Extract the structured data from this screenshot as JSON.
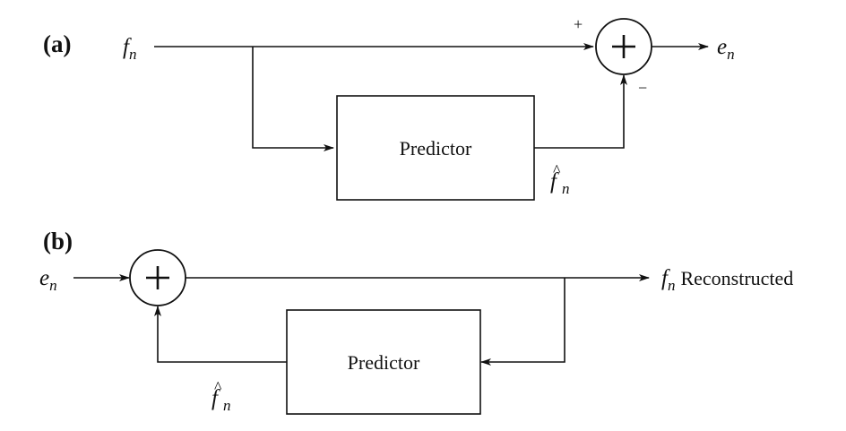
{
  "diagram_a": {
    "panel_label": "(a)",
    "input": {
      "symbol": "f",
      "subscript": "n"
    },
    "output": {
      "symbol": "e",
      "subscript": "n"
    },
    "predictor_label": "Predictor",
    "prediction": {
      "symbol": "f",
      "accent": "^",
      "subscript": "n"
    },
    "summer_symbol": "+",
    "sign_top": "+",
    "sign_bottom": "−"
  },
  "diagram_b": {
    "panel_label": "(b)",
    "input": {
      "symbol": "e",
      "subscript": "n"
    },
    "output": {
      "symbol": "f",
      "subscript": "n",
      "label": "Reconstructed"
    },
    "predictor_label": "Predictor",
    "prediction": {
      "symbol": "f",
      "accent": "^",
      "subscript": "n"
    },
    "summer_symbol": "+"
  }
}
